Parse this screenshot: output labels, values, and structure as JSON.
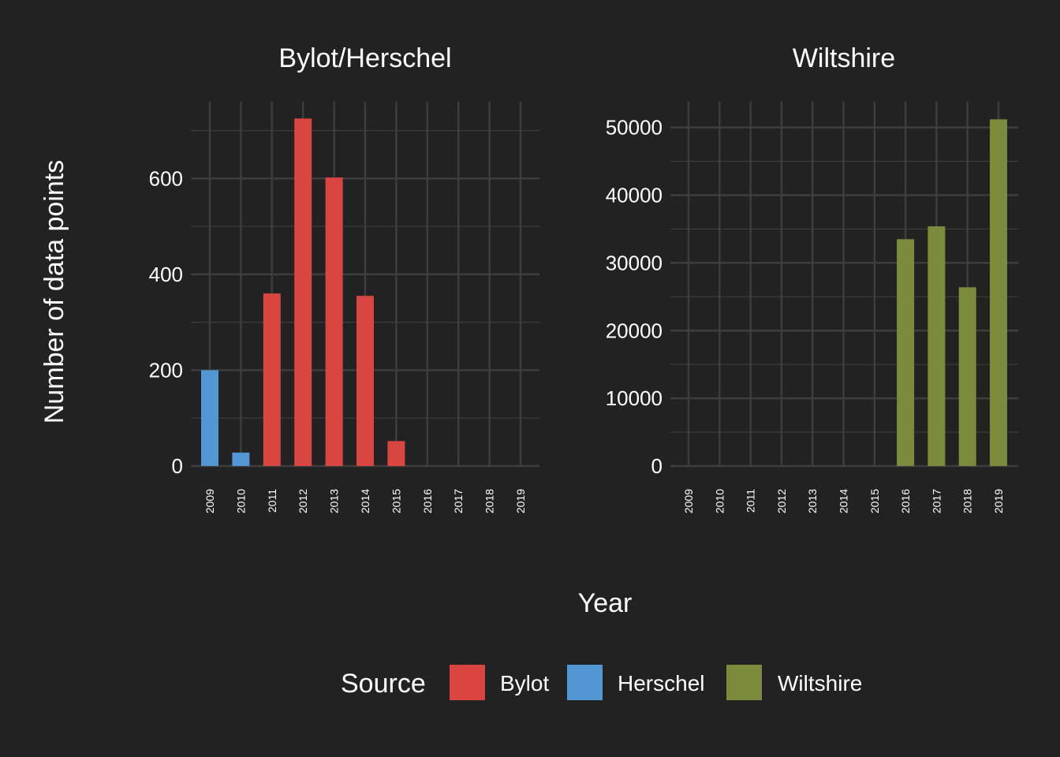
{
  "y_axis_label": "Number of data points",
  "x_axis_label": "Year",
  "legend": {
    "title": "Source",
    "items": [
      {
        "label": "Bylot",
        "color": "#D94642"
      },
      {
        "label": "Herschel",
        "color": "#5296D3"
      },
      {
        "label": "Wiltshire",
        "color": "#7C8A3C"
      }
    ]
  },
  "colors": {
    "background": "#222222",
    "grid": "#3E3E3E",
    "text": "#FFFFFF"
  },
  "chart_data": [
    {
      "type": "bar",
      "title": "Bylot/Herschel",
      "xlabel": "Year",
      "ylabel": "Number of data points",
      "categories": [
        "2009",
        "2010",
        "2011",
        "2012",
        "2013",
        "2014",
        "2015",
        "2016",
        "2017",
        "2018",
        "2019"
      ],
      "series": [
        {
          "name": "Bylot",
          "color": "#D94642",
          "values": [
            null,
            null,
            360,
            725,
            602,
            355,
            52,
            null,
            null,
            null,
            null
          ]
        },
        {
          "name": "Herschel",
          "color": "#5296D3",
          "values": [
            200,
            28,
            null,
            null,
            null,
            null,
            null,
            null,
            null,
            null,
            null
          ]
        }
      ],
      "yticks": [
        0,
        200,
        400,
        600
      ],
      "ylim": [
        0,
        760
      ],
      "grid": true
    },
    {
      "type": "bar",
      "title": "Wiltshire",
      "xlabel": "Year",
      "ylabel": "Number of data points",
      "categories": [
        "2009",
        "2010",
        "2011",
        "2012",
        "2013",
        "2014",
        "2015",
        "2016",
        "2017",
        "2018",
        "2019"
      ],
      "series": [
        {
          "name": "Wiltshire",
          "color": "#7C8A3C",
          "values": [
            null,
            null,
            null,
            null,
            null,
            null,
            null,
            33500,
            35400,
            26400,
            51200
          ]
        }
      ],
      "yticks": [
        0,
        10000,
        20000,
        30000,
        40000,
        50000
      ],
      "ylim": [
        0,
        53800
      ],
      "grid": true
    }
  ]
}
